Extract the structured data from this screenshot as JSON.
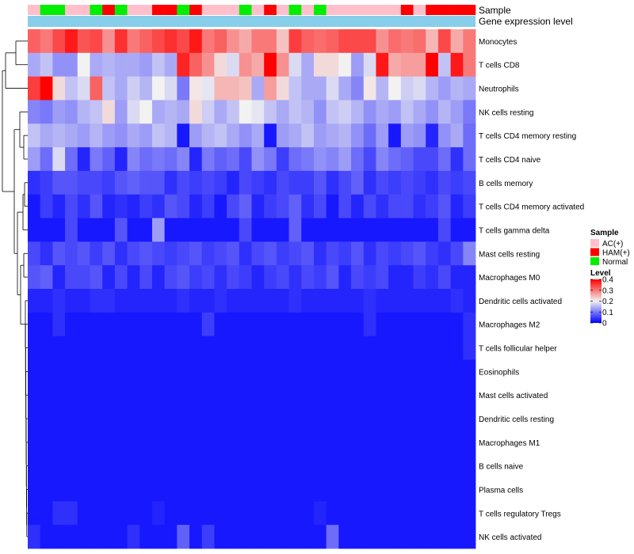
{
  "chart_data": {
    "type": "heatmap",
    "title": "",
    "annotation_labels": {
      "sample": "Sample",
      "gene": "Gene expression level"
    },
    "sample_groups": [
      "AC(+)",
      "Normal",
      "Normal",
      "AC(+)",
      "AC(+)",
      "Normal",
      "HAM(+)",
      "Normal",
      "AC(+)",
      "AC(+)",
      "HAM(+)",
      "HAM(+)",
      "Normal",
      "HAM(+)",
      "AC(+)",
      "AC(+)",
      "AC(+)",
      "Normal",
      "AC(+)",
      "HAM(+)",
      "AC(+)",
      "Normal",
      "AC(+)",
      "Normal",
      "AC(+)",
      "AC(+)",
      "AC(+)",
      "AC(+)",
      "AC(+)",
      "AC(+)",
      "HAM(+)",
      "AC(+)",
      "HAM(+)",
      "HAM(+)",
      "HAM(+)",
      "HAM(+)"
    ],
    "sample_colors": {
      "AC(+)": "#FFC0CB",
      "HAM(+)": "#FF0000",
      "Normal": "#00EE00"
    },
    "gene_bar_color": "#87CEEB",
    "rows": [
      "Monocytes",
      "T cells CD8",
      "Neutrophils",
      "NK cells resting",
      "T cells CD4 memory resting",
      "T cells CD4 naive",
      "B cells memory",
      "T cells CD4 memory activated",
      "T cells gamma delta",
      "Mast cells resting",
      "Macrophages M0",
      "Dendritic cells activated",
      "Macrophages M2",
      "T cells follicular helper",
      "Eosinophils",
      "Mast cells activated",
      "Dendritic cells resting",
      "Macrophages M1",
      "B cells naive",
      "Plasma cells",
      "T cells regulatory  Tregs",
      "NK cells activated"
    ],
    "values": [
      [
        0.32,
        0.3,
        0.34,
        0.38,
        0.33,
        0.34,
        0.28,
        0.36,
        0.3,
        0.32,
        0.34,
        0.36,
        0.34,
        0.38,
        0.3,
        0.32,
        0.28,
        0.26,
        0.3,
        0.3,
        0.24,
        0.35,
        0.32,
        0.31,
        0.32,
        0.34,
        0.34,
        0.34,
        0.28,
        0.31,
        0.3,
        0.31,
        0.25,
        0.34,
        0.26,
        0.3
      ],
      [
        0.14,
        0.16,
        0.12,
        0.12,
        0.2,
        0.14,
        0.15,
        0.14,
        0.14,
        0.13,
        0.16,
        0.14,
        0.37,
        0.32,
        0.28,
        0.22,
        0.18,
        0.28,
        0.26,
        0.4,
        0.28,
        0.18,
        0.14,
        0.22,
        0.22,
        0.2,
        0.13,
        0.18,
        0.38,
        0.26,
        0.27,
        0.27,
        0.4,
        0.16,
        0.38,
        0.3
      ],
      [
        0.35,
        0.4,
        0.22,
        0.16,
        0.18,
        0.32,
        0.16,
        0.14,
        0.17,
        0.15,
        0.2,
        0.18,
        0.1,
        0.21,
        0.19,
        0.25,
        0.25,
        0.24,
        0.14,
        0.27,
        0.22,
        0.16,
        0.14,
        0.14,
        0.18,
        0.14,
        0.11,
        0.21,
        0.15,
        0.2,
        0.17,
        0.18,
        0.15,
        0.13,
        0.15,
        0.14
      ],
      [
        0.11,
        0.1,
        0.13,
        0.12,
        0.15,
        0.16,
        0.22,
        0.13,
        0.18,
        0.2,
        0.14,
        0.15,
        0.14,
        0.22,
        0.17,
        0.14,
        0.16,
        0.2,
        0.19,
        0.16,
        0.14,
        0.16,
        0.15,
        0.12,
        0.16,
        0.17,
        0.15,
        0.12,
        0.14,
        0.13,
        0.16,
        0.14,
        0.12,
        0.15,
        0.13,
        0.1
      ],
      [
        0.16,
        0.14,
        0.15,
        0.14,
        0.13,
        0.15,
        0.13,
        0.12,
        0.14,
        0.13,
        0.16,
        0.15,
        0.02,
        0.13,
        0.15,
        0.16,
        0.14,
        0.12,
        0.14,
        0.02,
        0.13,
        0.14,
        0.16,
        0.13,
        0.14,
        0.15,
        0.12,
        0.09,
        0.13,
        0.02,
        0.13,
        0.12,
        0.03,
        0.12,
        0.14,
        0.09
      ],
      [
        0.13,
        0.09,
        0.18,
        0.09,
        0.03,
        0.1,
        0.08,
        0.03,
        0.11,
        0.09,
        0.1,
        0.09,
        0.11,
        0.03,
        0.1,
        0.08,
        0.09,
        0.06,
        0.12,
        0.1,
        0.05,
        0.09,
        0.1,
        0.12,
        0.11,
        0.13,
        0.09,
        0.06,
        0.11,
        0.09,
        0.08,
        0.06,
        0.06,
        0.09,
        0.04,
        0.09
      ],
      [
        0.04,
        0.05,
        0.07,
        0.07,
        0.06,
        0.06,
        0.05,
        0.07,
        0.08,
        0.07,
        0.07,
        0.04,
        0.06,
        0.05,
        0.06,
        0.05,
        0.03,
        0.06,
        0.05,
        0.04,
        0.06,
        0.05,
        0.05,
        0.07,
        0.04,
        0.06,
        0.08,
        0.04,
        0.06,
        0.05,
        0.06,
        0.05,
        0.04,
        0.06,
        0.05,
        0.06
      ],
      [
        0.02,
        0.05,
        0.03,
        0.06,
        0.04,
        0.07,
        0.03,
        0.04,
        0.03,
        0.05,
        0.04,
        0.07,
        0.06,
        0.03,
        0.05,
        0.02,
        0.06,
        0.08,
        0.03,
        0.05,
        0.06,
        0.08,
        0.04,
        0.06,
        0.02,
        0.06,
        0.03,
        0.06,
        0.04,
        0.06,
        0.06,
        0.04,
        0.05,
        0.07,
        0.03,
        0.05
      ],
      [
        0.02,
        0.02,
        0.02,
        0.06,
        0.02,
        0.02,
        0.02,
        0.07,
        0.02,
        0.02,
        0.13,
        0.02,
        0.02,
        0.02,
        0.02,
        0.02,
        0.02,
        0.06,
        0.02,
        0.02,
        0.02,
        0.08,
        0.02,
        0.02,
        0.02,
        0.02,
        0.02,
        0.02,
        0.02,
        0.02,
        0.02,
        0.02,
        0.02,
        0.06,
        0.02,
        0.02
      ],
      [
        0.06,
        0.04,
        0.07,
        0.06,
        0.07,
        0.05,
        0.07,
        0.04,
        0.06,
        0.07,
        0.06,
        0.05,
        0.06,
        0.07,
        0.05,
        0.06,
        0.07,
        0.04,
        0.06,
        0.07,
        0.05,
        0.06,
        0.07,
        0.04,
        0.06,
        0.05,
        0.07,
        0.04,
        0.06,
        0.05,
        0.06,
        0.07,
        0.05,
        0.04,
        0.06,
        0.11
      ],
      [
        0.07,
        0.08,
        0.03,
        0.06,
        0.06,
        0.07,
        0.03,
        0.06,
        0.03,
        0.06,
        0.03,
        0.06,
        0.07,
        0.05,
        0.06,
        0.04,
        0.06,
        0.05,
        0.03,
        0.05,
        0.06,
        0.04,
        0.06,
        0.05,
        0.07,
        0.03,
        0.06,
        0.05,
        0.06,
        0.03,
        0.03,
        0.05,
        0.04,
        0.06,
        0.03,
        0.03
      ],
      [
        0.03,
        0.03,
        0.04,
        0.03,
        0.03,
        0.04,
        0.04,
        0.03,
        0.03,
        0.03,
        0.03,
        0.03,
        0.04,
        0.03,
        0.03,
        0.04,
        0.03,
        0.03,
        0.03,
        0.03,
        0.03,
        0.04,
        0.03,
        0.03,
        0.03,
        0.03,
        0.03,
        0.04,
        0.03,
        0.03,
        0.03,
        0.03,
        0.03,
        0.03,
        0.04,
        0.03
      ],
      [
        0.02,
        0.02,
        0.04,
        0.02,
        0.02,
        0.02,
        0.02,
        0.02,
        0.02,
        0.02,
        0.02,
        0.02,
        0.02,
        0.02,
        0.05,
        0.02,
        0.02,
        0.02,
        0.02,
        0.02,
        0.02,
        0.02,
        0.02,
        0.02,
        0.02,
        0.02,
        0.02,
        0.04,
        0.02,
        0.02,
        0.02,
        0.02,
        0.02,
        0.02,
        0.02,
        0.04
      ],
      [
        0.02,
        0.02,
        0.02,
        0.02,
        0.02,
        0.02,
        0.02,
        0.02,
        0.02,
        0.02,
        0.02,
        0.02,
        0.02,
        0.02,
        0.02,
        0.02,
        0.02,
        0.02,
        0.02,
        0.02,
        0.02,
        0.02,
        0.02,
        0.02,
        0.02,
        0.02,
        0.02,
        0.02,
        0.02,
        0.02,
        0.02,
        0.02,
        0.02,
        0.02,
        0.02,
        0.04
      ],
      [
        0.02,
        0.02,
        0.02,
        0.02,
        0.02,
        0.02,
        0.02,
        0.02,
        0.02,
        0.02,
        0.02,
        0.02,
        0.02,
        0.02,
        0.02,
        0.02,
        0.02,
        0.02,
        0.02,
        0.02,
        0.02,
        0.02,
        0.02,
        0.02,
        0.02,
        0.02,
        0.02,
        0.02,
        0.02,
        0.02,
        0.02,
        0.02,
        0.02,
        0.02,
        0.02,
        0.02
      ],
      [
        0.02,
        0.02,
        0.02,
        0.02,
        0.02,
        0.02,
        0.02,
        0.02,
        0.02,
        0.02,
        0.02,
        0.02,
        0.02,
        0.02,
        0.02,
        0.02,
        0.02,
        0.02,
        0.02,
        0.02,
        0.02,
        0.02,
        0.02,
        0.02,
        0.02,
        0.02,
        0.02,
        0.02,
        0.02,
        0.02,
        0.02,
        0.02,
        0.02,
        0.02,
        0.02,
        0.02
      ],
      [
        0.02,
        0.02,
        0.02,
        0.02,
        0.02,
        0.02,
        0.02,
        0.02,
        0.02,
        0.02,
        0.02,
        0.02,
        0.02,
        0.02,
        0.02,
        0.02,
        0.02,
        0.02,
        0.02,
        0.02,
        0.02,
        0.02,
        0.02,
        0.02,
        0.02,
        0.02,
        0.02,
        0.02,
        0.02,
        0.02,
        0.02,
        0.02,
        0.02,
        0.02,
        0.02,
        0.02
      ],
      [
        0.02,
        0.02,
        0.02,
        0.02,
        0.02,
        0.02,
        0.02,
        0.02,
        0.02,
        0.02,
        0.02,
        0.02,
        0.02,
        0.02,
        0.02,
        0.02,
        0.02,
        0.02,
        0.02,
        0.02,
        0.02,
        0.02,
        0.02,
        0.02,
        0.02,
        0.02,
        0.02,
        0.02,
        0.02,
        0.02,
        0.02,
        0.02,
        0.02,
        0.02,
        0.02,
        0.02
      ],
      [
        0.02,
        0.02,
        0.02,
        0.02,
        0.02,
        0.02,
        0.02,
        0.02,
        0.02,
        0.02,
        0.02,
        0.02,
        0.02,
        0.02,
        0.02,
        0.02,
        0.02,
        0.02,
        0.02,
        0.02,
        0.02,
        0.02,
        0.02,
        0.02,
        0.02,
        0.02,
        0.02,
        0.02,
        0.02,
        0.02,
        0.02,
        0.02,
        0.02,
        0.02,
        0.02,
        0.02
      ],
      [
        0.02,
        0.02,
        0.02,
        0.02,
        0.02,
        0.02,
        0.02,
        0.02,
        0.02,
        0.02,
        0.02,
        0.02,
        0.02,
        0.02,
        0.02,
        0.02,
        0.02,
        0.02,
        0.02,
        0.02,
        0.02,
        0.02,
        0.02,
        0.02,
        0.02,
        0.02,
        0.02,
        0.02,
        0.02,
        0.02,
        0.02,
        0.02,
        0.02,
        0.02,
        0.02,
        0.02
      ],
      [
        0.02,
        0.02,
        0.04,
        0.04,
        0.02,
        0.02,
        0.02,
        0.02,
        0.02,
        0.02,
        0.03,
        0.02,
        0.02,
        0.02,
        0.02,
        0.02,
        0.02,
        0.02,
        0.02,
        0.02,
        0.02,
        0.02,
        0.02,
        0.03,
        0.02,
        0.02,
        0.02,
        0.02,
        0.02,
        0.02,
        0.02,
        0.02,
        0.02,
        0.02,
        0.02,
        0.02
      ],
      [
        0.04,
        0.02,
        0.02,
        0.02,
        0.02,
        0.02,
        0.02,
        0.02,
        0.04,
        0.02,
        0.02,
        0.02,
        0.08,
        0.02,
        0.05,
        0.02,
        0.02,
        0.02,
        0.02,
        0.02,
        0.02,
        0.02,
        0.02,
        0.02,
        0.09,
        0.02,
        0.02,
        0.02,
        0.02,
        0.02,
        0.02,
        0.02,
        0.02,
        0.02,
        0.02,
        0.02
      ]
    ],
    "color_scale": {
      "stops": [
        {
          "value": 0,
          "color": "#0000FF"
        },
        {
          "value": 0.2,
          "color": "#F2F2F2"
        },
        {
          "value": 0.4,
          "color": "#FF0000"
        }
      ]
    },
    "legend": {
      "sample_title": "Sample",
      "sample_entries": [
        "AC(+)",
        "HAM(+)",
        "Normal"
      ],
      "level_title": "Level",
      "level_ticks": [
        "0.4",
        "0.3",
        "0.2",
        "0.1",
        "0"
      ]
    }
  }
}
